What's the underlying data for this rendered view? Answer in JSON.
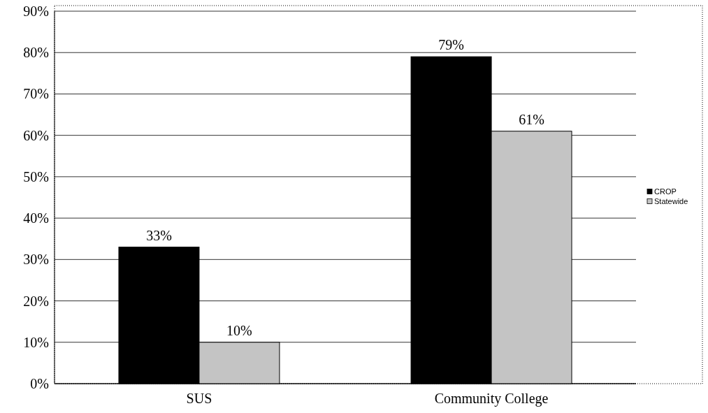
{
  "chart_data": {
    "type": "bar",
    "categories": [
      "SUS",
      "Community College"
    ],
    "series": [
      {
        "name": "CROP",
        "color": "#000000",
        "values": [
          33,
          79
        ],
        "value_labels": [
          "33%",
          "79%"
        ]
      },
      {
        "name": "Statewide",
        "color": "#c4c4c4",
        "values": [
          10,
          61
        ],
        "value_labels": [
          "10%",
          "61%"
        ]
      }
    ],
    "ylim": [
      0,
      90
    ],
    "yticks": [
      {
        "value": 0,
        "label": "0%"
      },
      {
        "value": 10,
        "label": "10%"
      },
      {
        "value": 20,
        "label": "20%"
      },
      {
        "value": 30,
        "label": "30%"
      },
      {
        "value": 40,
        "label": "40%"
      },
      {
        "value": 50,
        "label": "50%"
      },
      {
        "value": 60,
        "label": "60%"
      },
      {
        "value": 70,
        "label": "70%"
      },
      {
        "value": 80,
        "label": "80%"
      },
      {
        "value": 90,
        "label": "90%"
      }
    ],
    "grid": "y",
    "legend": "right"
  }
}
